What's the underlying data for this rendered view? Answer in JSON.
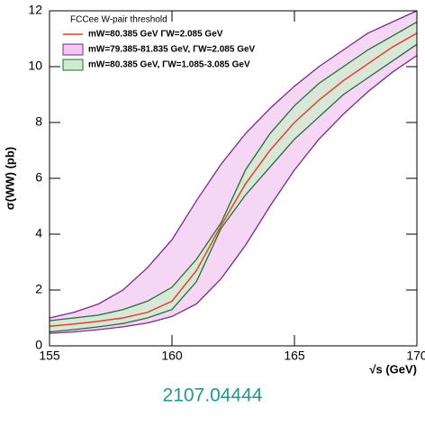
{
  "chart_data": {
    "type": "band",
    "legend_title": "FCCee W-pair threshold",
    "xlabel": "√s (GeV)",
    "ylabel": "σ(WW) (pb)",
    "x": [
      155,
      156,
      157,
      158,
      159,
      160,
      161,
      162,
      163,
      164,
      165,
      166,
      167,
      168,
      169,
      170
    ],
    "xlim": [
      155,
      170
    ],
    "xticks": [
      155,
      160,
      165,
      170
    ],
    "ylim": [
      0,
      12
    ],
    "yticks": [
      0,
      2,
      4,
      6,
      8,
      10,
      12
    ],
    "series": [
      {
        "name": "mW=80.385 GeV   ΓW=2.085 GeV",
        "color": "#e0452b",
        "values": [
          0.7,
          0.78,
          0.88,
          1.0,
          1.2,
          1.6,
          2.7,
          4.3,
          5.8,
          7.0,
          8.0,
          8.8,
          9.5,
          10.1,
          10.7,
          11.2
        ]
      },
      {
        "name": "mW=79.385-81.835 GeV,  ΓW=2.085 GeV",
        "color": "#7a2a88",
        "fill": "#f2c8f2",
        "upper": [
          1.0,
          1.2,
          1.5,
          2.0,
          2.8,
          3.8,
          5.2,
          6.5,
          7.6,
          8.5,
          9.3,
          10.0,
          10.6,
          11.2,
          11.6,
          12.0
        ],
        "lower": [
          0.45,
          0.5,
          0.58,
          0.68,
          0.82,
          1.05,
          1.5,
          2.4,
          3.6,
          5.0,
          6.3,
          7.4,
          8.3,
          9.1,
          9.8,
          10.4
        ]
      },
      {
        "name": "mW=80.385 GeV,  ΓW=1.085-3.085 GeV",
        "color": "#2a6a3a",
        "fill": "#cdeccd",
        "upper": [
          0.9,
          1.0,
          1.1,
          1.3,
          1.6,
          2.1,
          3.1,
          4.4,
          6.3,
          7.6,
          8.6,
          9.4,
          10.0,
          10.6,
          11.1,
          11.6
        ],
        "lower": [
          0.5,
          0.58,
          0.68,
          0.8,
          1.0,
          1.3,
          2.3,
          4.2,
          5.4,
          6.4,
          7.4,
          8.2,
          9.0,
          9.6,
          10.2,
          10.8
        ]
      }
    ]
  },
  "caption": "2107.04444"
}
